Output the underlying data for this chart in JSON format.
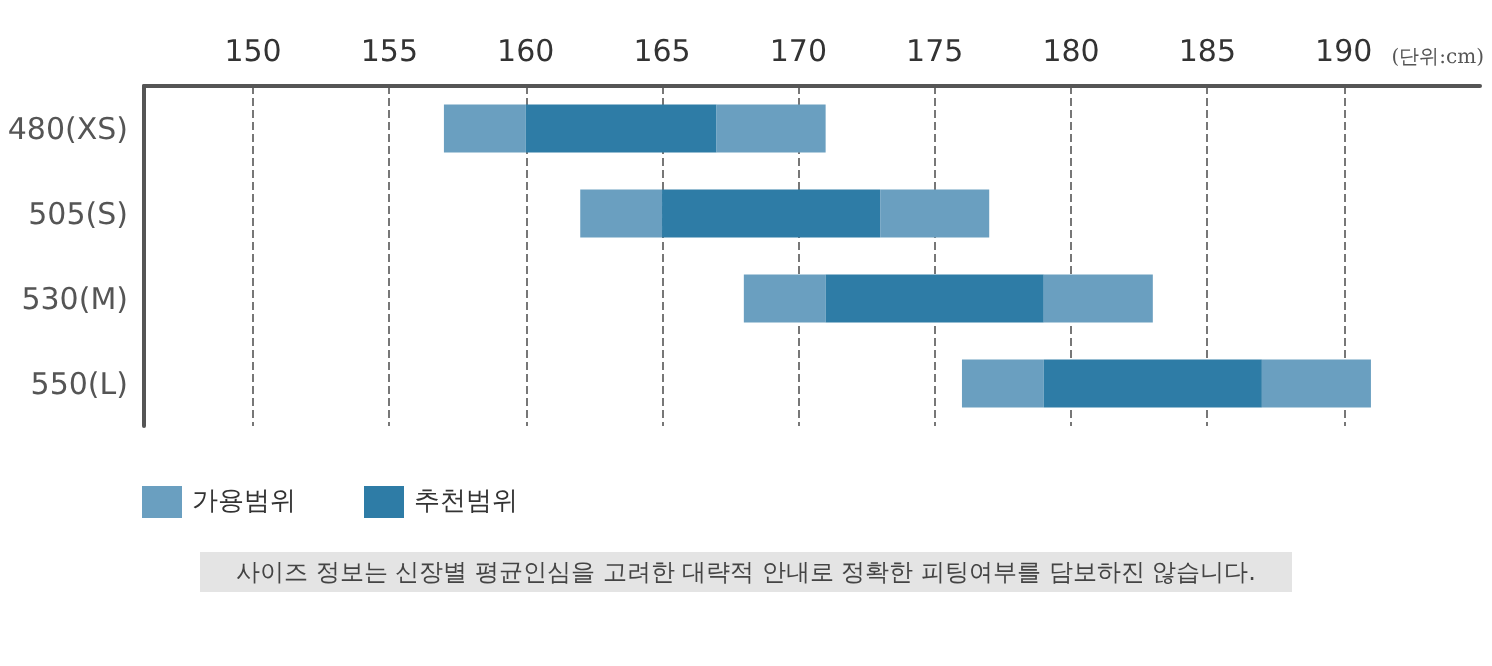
{
  "chart_data": {
    "type": "bar",
    "orientation": "horizontal",
    "categories": [
      "480(XS)",
      "505(S)",
      "530(M)",
      "550(L)"
    ],
    "series": [
      {
        "name": "가용범위",
        "color": "#6a9fc0",
        "base": [
          157,
          162,
          168,
          176
        ],
        "values": [
          3,
          3,
          3,
          3
        ]
      },
      {
        "name": "추천범위",
        "color": "#2e7ca6",
        "base": [
          160,
          165,
          171,
          179
        ],
        "values": [
          7,
          8,
          8,
          8
        ]
      },
      {
        "color": "#6a9fc0",
        "base": [
          167,
          173,
          179,
          187
        ],
        "values": [
          4,
          4,
          4,
          4
        ]
      }
    ],
    "xlim": [
      146,
      195
    ],
    "xticks": [
      150,
      155,
      160,
      165,
      170,
      175,
      180,
      185,
      190
    ],
    "xlabel": "(단위:cm)",
    "grid": "x",
    "legend": "bottom left",
    "annotations": [
      "사이즈 정보는 신장별 평균인심을 고려한 대략적 안내로 정확한 피팅여부를 담보하진 않습니다."
    ]
  }
}
